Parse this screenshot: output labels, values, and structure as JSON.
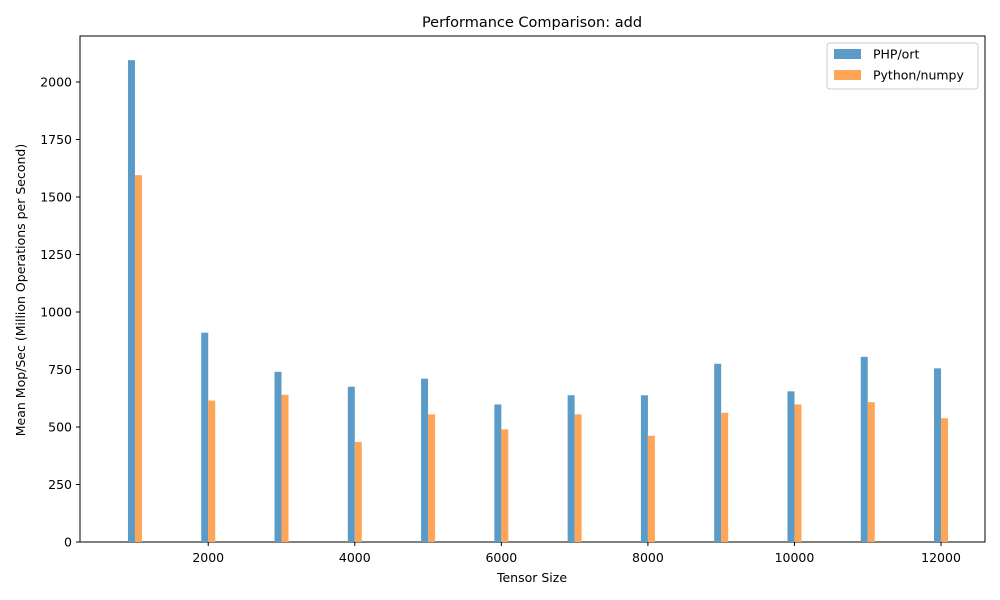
{
  "chart_data": {
    "type": "bar",
    "title": "Performance Comparison: add",
    "xlabel": "Tensor Size",
    "ylabel": "Mean Mop/Sec (Million Operations per Second)",
    "x": [
      1000,
      2000,
      3000,
      4000,
      5000,
      6000,
      7000,
      8000,
      9000,
      10000,
      11000,
      12000
    ],
    "series": [
      {
        "name": "PHP/ort",
        "color": "#5b9bc8",
        "values": [
          2095,
          910,
          740,
          675,
          710,
          598,
          638,
          638,
          775,
          655,
          805,
          755
        ]
      },
      {
        "name": "Python/numpy",
        "color": "#ffa557",
        "values": [
          1595,
          615,
          640,
          435,
          555,
          490,
          555,
          462,
          562,
          598,
          608,
          538
        ]
      }
    ],
    "xlim": [
      250,
      12600
    ],
    "ylim": [
      0,
      2200
    ],
    "xticks": [
      2000,
      4000,
      6000,
      8000,
      10000,
      12000
    ],
    "yticks": [
      0,
      250,
      500,
      750,
      1000,
      1250,
      1500,
      1750,
      2000
    ],
    "legend_position": "top-right",
    "grid": false
  }
}
